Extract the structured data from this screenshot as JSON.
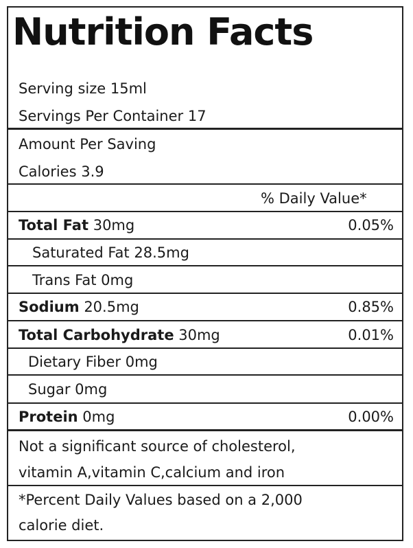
{
  "title": "Nutrition Facts",
  "serving_size": "Serving size 15ml",
  "servings_per_container": "Servings Per Container 17",
  "amount_per": "Amount Per Saving",
  "calories": "Calories  3.9",
  "dv_header": "% Daily Value*",
  "rows": [
    {
      "name": "Total Fat",
      "amount": "30mg",
      "dv": "0.05%"
    },
    {
      "name": "Saturated Fat",
      "amount": "28.5mg",
      "dv": ""
    },
    {
      "name": "Trans Fat",
      "amount": "0mg",
      "dv": ""
    },
    {
      "name": "Sodium",
      "amount": "20.5mg",
      "dv": "0.85%"
    },
    {
      "name": "Total Carbohydrate",
      "amount": "30mg",
      "dv": "0.01%"
    },
    {
      "name": "Dietary Fiber",
      "amount": "0mg",
      "dv": ""
    },
    {
      "name": "Sugar",
      "amount": "0mg",
      "dv": ""
    },
    {
      "name": "Protein",
      "amount": "0mg",
      "dv": "0.00%"
    }
  ],
  "note_line1": "Not a significant source of cholesterol,",
  "note_line2": "vitamin A,vitamin C,calcium and iron",
  "footnote_line1": "*Percent Daily Values based on a 2,000",
  "footnote_line2": "calorie diet."
}
